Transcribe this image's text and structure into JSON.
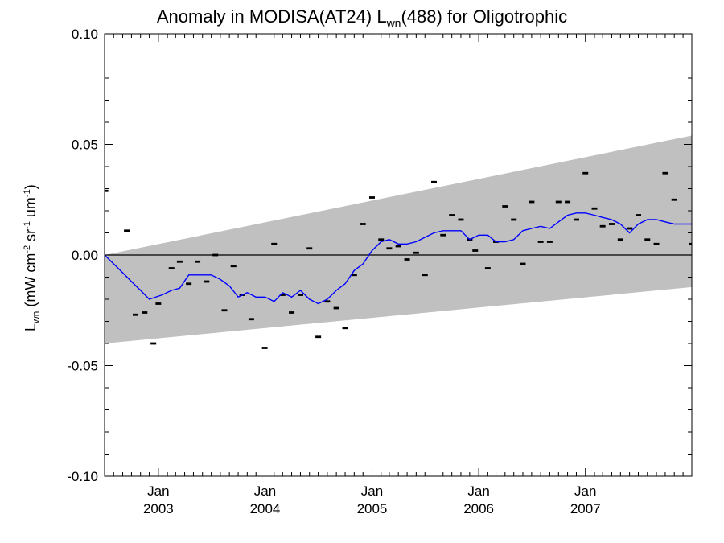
{
  "chart_data": {
    "type": "scatter",
    "title_main": "Anomaly in MODISA(AT24) L",
    "title_sub": "wn",
    "title_tail": "(488) for Oligotrophic",
    "ylabel": {
      "L": "L",
      "L_sub": "wn",
      "open": " (mW cm",
      "sup1": "-2",
      "sr": " sr",
      "sup2": "-1",
      "um": " um",
      "sup3": "-1",
      "close": ")"
    },
    "ylim": [
      -0.1,
      0.1
    ],
    "xlim": [
      "2002-07-01",
      "2007-12-31"
    ],
    "y_ticks": [
      "0.10",
      "0.05",
      "0.00",
      "-0.05",
      "-0.10"
    ],
    "x_ticks": [
      {
        "month": "Jan",
        "year": "2003",
        "date": "2003-01-01"
      },
      {
        "month": "Jan",
        "year": "2004",
        "date": "2004-01-01"
      },
      {
        "month": "Jan",
        "year": "2005",
        "date": "2005-01-01"
      },
      {
        "month": "Jan",
        "year": "2006",
        "date": "2006-01-01"
      },
      {
        "month": "Jan",
        "year": "2007",
        "date": "2007-01-01"
      }
    ],
    "zero_line": 0.0,
    "band": {
      "upper": [
        {
          "x": "2002-07-01",
          "y": 0.0
        },
        {
          "x": "2007-12-31",
          "y": 0.054
        }
      ],
      "lower": [
        {
          "x": "2002-07-01",
          "y": -0.04
        },
        {
          "x": "2007-12-31",
          "y": -0.0145
        }
      ],
      "color": "#c0c0c0"
    },
    "series": [
      {
        "kind": "points",
        "color": "#000000",
        "points": [
          {
            "x": "2002-07-04",
            "y": 0.029
          },
          {
            "x": "2002-09-15",
            "y": 0.011
          },
          {
            "x": "2002-10-15",
            "y": -0.027
          },
          {
            "x": "2002-11-15",
            "y": -0.026
          },
          {
            "x": "2002-12-15",
            "y": -0.04
          },
          {
            "x": "2003-01-01",
            "y": -0.022
          },
          {
            "x": "2003-02-15",
            "y": -0.006
          },
          {
            "x": "2003-03-15",
            "y": -0.003
          },
          {
            "x": "2003-04-15",
            "y": -0.013
          },
          {
            "x": "2003-05-15",
            "y": -0.003
          },
          {
            "x": "2003-06-15",
            "y": -0.012
          },
          {
            "x": "2003-07-15",
            "y": 0.0
          },
          {
            "x": "2003-08-15",
            "y": -0.025
          },
          {
            "x": "2003-09-15",
            "y": -0.005
          },
          {
            "x": "2003-10-15",
            "y": -0.018
          },
          {
            "x": "2003-11-15",
            "y": -0.029
          },
          {
            "x": "2003-12-31",
            "y": -0.042
          },
          {
            "x": "2004-02-01",
            "y": 0.005
          },
          {
            "x": "2004-03-01",
            "y": -0.018
          },
          {
            "x": "2004-04-01",
            "y": -0.026
          },
          {
            "x": "2004-05-01",
            "y": -0.018
          },
          {
            "x": "2004-06-01",
            "y": 0.003
          },
          {
            "x": "2004-07-01",
            "y": -0.037
          },
          {
            "x": "2004-08-01",
            "y": -0.021
          },
          {
            "x": "2004-09-01",
            "y": -0.024
          },
          {
            "x": "2004-10-01",
            "y": -0.033
          },
          {
            "x": "2004-11-01",
            "y": -0.009
          },
          {
            "x": "2004-12-01",
            "y": 0.014
          },
          {
            "x": "2005-01-01",
            "y": 0.026
          },
          {
            "x": "2005-02-01",
            "y": 0.007
          },
          {
            "x": "2005-03-01",
            "y": 0.003
          },
          {
            "x": "2005-04-01",
            "y": 0.004
          },
          {
            "x": "2005-05-01",
            "y": -0.002
          },
          {
            "x": "2005-06-01",
            "y": 0.001
          },
          {
            "x": "2005-07-01",
            "y": -0.009
          },
          {
            "x": "2005-08-01",
            "y": 0.033
          },
          {
            "x": "2005-09-01",
            "y": 0.009
          },
          {
            "x": "2005-10-01",
            "y": 0.018
          },
          {
            "x": "2005-11-01",
            "y": 0.016
          },
          {
            "x": "2005-12-01",
            "y": 0.007
          },
          {
            "x": "2005-12-20",
            "y": 0.002
          },
          {
            "x": "2006-02-01",
            "y": -0.006
          },
          {
            "x": "2006-03-01",
            "y": 0.006
          },
          {
            "x": "2006-04-01",
            "y": 0.022
          },
          {
            "x": "2006-05-01",
            "y": 0.016
          },
          {
            "x": "2006-06-01",
            "y": -0.004
          },
          {
            "x": "2006-07-01",
            "y": 0.024
          },
          {
            "x": "2006-08-01",
            "y": 0.006
          },
          {
            "x": "2006-09-01",
            "y": 0.006
          },
          {
            "x": "2006-10-01",
            "y": 0.024
          },
          {
            "x": "2006-11-01",
            "y": 0.024
          },
          {
            "x": "2006-12-01",
            "y": 0.016
          },
          {
            "x": "2007-01-01",
            "y": 0.037
          },
          {
            "x": "2007-02-01",
            "y": 0.021
          },
          {
            "x": "2007-03-01",
            "y": 0.013
          },
          {
            "x": "2007-04-01",
            "y": 0.014
          },
          {
            "x": "2007-05-01",
            "y": 0.007
          },
          {
            "x": "2007-06-01",
            "y": 0.012
          },
          {
            "x": "2007-07-01",
            "y": 0.018
          },
          {
            "x": "2007-08-01",
            "y": 0.007
          },
          {
            "x": "2007-09-01",
            "y": 0.005
          },
          {
            "x": "2007-10-01",
            "y": 0.037
          },
          {
            "x": "2007-11-01",
            "y": 0.025
          },
          {
            "x": "2007-12-31",
            "y": 0.005
          }
        ]
      },
      {
        "kind": "line",
        "color": "#0000ff",
        "points": [
          {
            "x": "2002-07-01",
            "y": 0.0
          },
          {
            "x": "2002-08-01",
            "y": -0.004
          },
          {
            "x": "2002-09-01",
            "y": -0.008
          },
          {
            "x": "2002-10-01",
            "y": -0.012
          },
          {
            "x": "2002-11-01",
            "y": -0.016
          },
          {
            "x": "2002-12-01",
            "y": -0.02
          },
          {
            "x": "2003-01-15",
            "y": -0.018
          },
          {
            "x": "2003-02-15",
            "y": -0.016
          },
          {
            "x": "2003-03-15",
            "y": -0.015
          },
          {
            "x": "2003-04-15",
            "y": -0.009
          },
          {
            "x": "2003-06-01",
            "y": -0.009
          },
          {
            "x": "2003-07-01",
            "y": -0.009
          },
          {
            "x": "2003-08-01",
            "y": -0.011
          },
          {
            "x": "2003-09-01",
            "y": -0.014
          },
          {
            "x": "2003-10-01",
            "y": -0.019
          },
          {
            "x": "2003-11-01",
            "y": -0.017
          },
          {
            "x": "2003-12-01",
            "y": -0.019
          },
          {
            "x": "2004-01-01",
            "y": -0.019
          },
          {
            "x": "2004-02-01",
            "y": -0.021
          },
          {
            "x": "2004-03-01",
            "y": -0.017
          },
          {
            "x": "2004-04-01",
            "y": -0.019
          },
          {
            "x": "2004-05-01",
            "y": -0.016
          },
          {
            "x": "2004-06-01",
            "y": -0.02
          },
          {
            "x": "2004-07-01",
            "y": -0.022
          },
          {
            "x": "2004-08-01",
            "y": -0.02
          },
          {
            "x": "2004-09-01",
            "y": -0.016
          },
          {
            "x": "2004-10-01",
            "y": -0.013
          },
          {
            "x": "2004-11-01",
            "y": -0.007
          },
          {
            "x": "2004-12-01",
            "y": -0.004
          },
          {
            "x": "2005-01-01",
            "y": 0.002
          },
          {
            "x": "2005-02-01",
            "y": 0.006
          },
          {
            "x": "2005-03-01",
            "y": 0.007
          },
          {
            "x": "2005-04-01",
            "y": 0.005
          },
          {
            "x": "2005-05-01",
            "y": 0.005
          },
          {
            "x": "2005-06-01",
            "y": 0.006
          },
          {
            "x": "2005-07-01",
            "y": 0.008
          },
          {
            "x": "2005-08-01",
            "y": 0.01
          },
          {
            "x": "2005-09-01",
            "y": 0.011
          },
          {
            "x": "2005-10-01",
            "y": 0.011
          },
          {
            "x": "2005-11-01",
            "y": 0.011
          },
          {
            "x": "2005-12-01",
            "y": 0.007
          },
          {
            "x": "2006-01-01",
            "y": 0.009
          },
          {
            "x": "2006-02-01",
            "y": 0.009
          },
          {
            "x": "2006-03-01",
            "y": 0.006
          },
          {
            "x": "2006-04-01",
            "y": 0.006
          },
          {
            "x": "2006-05-01",
            "y": 0.007
          },
          {
            "x": "2006-06-01",
            "y": 0.011
          },
          {
            "x": "2006-07-01",
            "y": 0.012
          },
          {
            "x": "2006-08-01",
            "y": 0.013
          },
          {
            "x": "2006-09-01",
            "y": 0.012
          },
          {
            "x": "2006-10-01",
            "y": 0.015
          },
          {
            "x": "2006-11-01",
            "y": 0.018
          },
          {
            "x": "2006-12-01",
            "y": 0.019
          },
          {
            "x": "2007-01-01",
            "y": 0.019
          },
          {
            "x": "2007-02-01",
            "y": 0.018
          },
          {
            "x": "2007-03-01",
            "y": 0.017
          },
          {
            "x": "2007-04-01",
            "y": 0.016
          },
          {
            "x": "2007-05-01",
            "y": 0.014
          },
          {
            "x": "2007-06-01",
            "y": 0.01
          },
          {
            "x": "2007-07-01",
            "y": 0.014
          },
          {
            "x": "2007-08-01",
            "y": 0.016
          },
          {
            "x": "2007-09-01",
            "y": 0.016
          },
          {
            "x": "2007-10-01",
            "y": 0.015
          },
          {
            "x": "2007-11-01",
            "y": 0.014
          },
          {
            "x": "2007-12-31",
            "y": 0.014
          }
        ]
      }
    ],
    "grid": false
  }
}
